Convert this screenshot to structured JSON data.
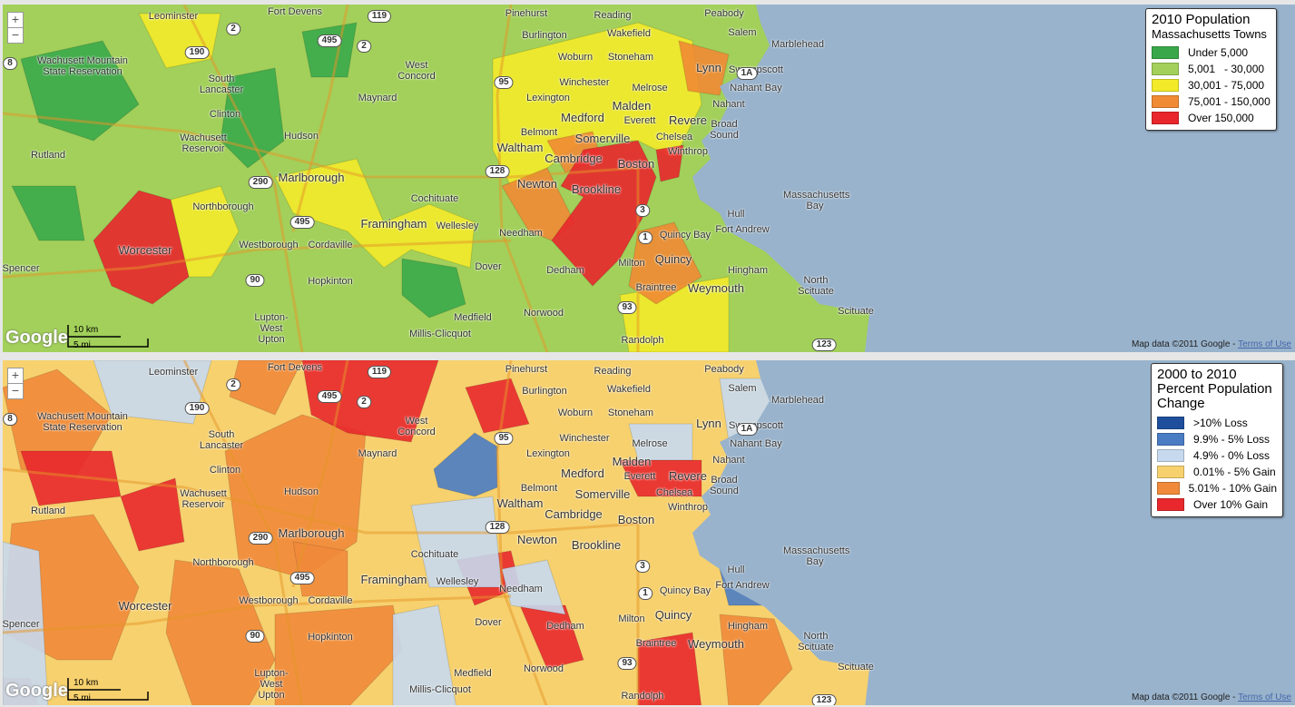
{
  "logo": "Google",
  "zoom_controls": [
    "+",
    "−"
  ],
  "scale": {
    "km": "10 km",
    "mi": "5 mi"
  },
  "attribution": "Map data ©2011 Google - ",
  "terms": "Terms of Use",
  "maps": [
    {
      "legend": {
        "title": "2010 Population",
        "subtitle": "Massachusetts Towns",
        "items": [
          {
            "label": "Under 5,000",
            "color": "#3aa84a"
          },
          {
            "label": "5,001   - 30,000",
            "color": "#a2d05a"
          },
          {
            "label": "30,001 - 75,000",
            "color": "#f3ea2a"
          },
          {
            "label": "75,001 - 150,000",
            "color": "#f08a34"
          },
          {
            "label": "Over 150,000",
            "color": "#e8262c"
          }
        ]
      }
    },
    {
      "legend": {
        "title": "2000 to 2010 Percent Population Change",
        "items": [
          {
            "label": ">10% Loss",
            "color": "#1f4f9c"
          },
          {
            "label": "9.9% - 5% Loss",
            "color": "#4a7cc4"
          },
          {
            "label": "4.9% - 0% Loss",
            "color": "#c7d9ee"
          },
          {
            "label": "0.01% - 5% Gain",
            "color": "#f7d16e"
          },
          {
            "label": "5.01% - 10% Gain",
            "color": "#f08a3a"
          },
          {
            "label": "Over 10% Gain",
            "color": "#e8282c"
          }
        ]
      }
    }
  ],
  "place_labels": [
    "Leominster",
    "Fort Devens",
    "Pinehurst",
    "Reading",
    "Peabody",
    "Salem",
    "Marblehead",
    "Burlington",
    "Wakefield",
    "Wachusett Mountain State Reservation",
    "South Lancaster",
    "West Concord",
    "Woburn",
    "Stoneham",
    "Lynn",
    "Swampscott",
    "Maynard",
    "Winchester",
    "Melrose",
    "Nahant Bay",
    "Lexington",
    "Malden",
    "Revere",
    "Nahant",
    "Clinton",
    "Medford",
    "Everett",
    "Broad Sound",
    "Wachusett Reservoir",
    "Hudson",
    "Belmont",
    "Somerville",
    "Chelsea",
    "Winthrop",
    "Rutland",
    "Waltham",
    "Cambridge",
    "Boston",
    "Marlborough",
    "Newton",
    "Brookline",
    "Massachusetts Bay",
    "Northborough",
    "Cochituate",
    "Framingham",
    "Wellesley",
    "Hull",
    "Fort Andrew",
    "Quincy Bay",
    "Worcester",
    "Westborough",
    "Cordaville",
    "Needham",
    "Quincy",
    "Dover",
    "Dedham",
    "Milton",
    "Hingham",
    "Spencer",
    "Hopkinton",
    "Braintree",
    "Weymouth",
    "North Scituate",
    "Norwood",
    "Medfield",
    "Scituate",
    "Lupton-West Upton",
    "Millis-Clicquot",
    "Randolph"
  ],
  "road_shields": [
    "2",
    "495",
    "2",
    "119",
    "190",
    "95",
    "1A",
    "128",
    "290",
    "495",
    "90",
    "3",
    "1",
    "93",
    "123",
    "8"
  ]
}
